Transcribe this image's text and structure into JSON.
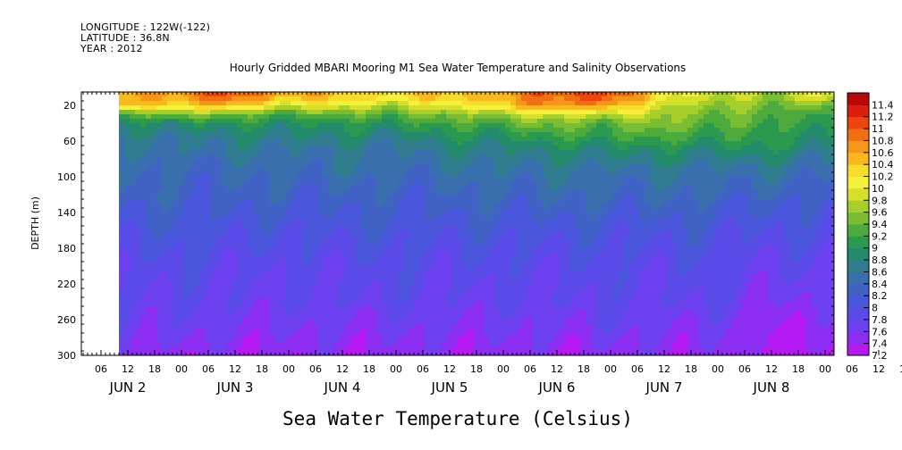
{
  "meta": {
    "longitude": "LONGITUDE : 122W(-122)",
    "latitude": "LATITUDE : 36.8N",
    "year": "YEAR : 2012"
  },
  "chart_data": {
    "type": "heatmap",
    "title": "Hourly Gridded MBARI Mooring M1 Sea Water Temperature and Salinity Observations",
    "xlabel": "Sea Water Temperature (Celsius)",
    "ylabel": "DEPTH (m)",
    "y_ticks": [
      20,
      60,
      100,
      140,
      180,
      220,
      260,
      300
    ],
    "ylim": [
      5,
      300
    ],
    "y_inverted": true,
    "x_hour_ticks": [
      "06",
      "12",
      "18",
      "00",
      "06",
      "12",
      "18",
      "00",
      "06",
      "12",
      "18",
      "00",
      "06",
      "12",
      "18",
      "00",
      "06",
      "12",
      "18",
      "00",
      "06",
      "12",
      "18",
      "00",
      "06",
      "12",
      "18",
      "00",
      "06",
      "12",
      "18",
      "00"
    ],
    "x_day_labels": [
      "JUN 2",
      "JUN 3",
      "JUN 4",
      "JUN 5",
      "JUN 6",
      "JUN 7",
      "JUN 8"
    ],
    "data_start_hour_offset": 7,
    "colorbar": {
      "levels": [
        7.2,
        7.4,
        7.6,
        7.8,
        8,
        8.2,
        8.4,
        8.6,
        8.8,
        9,
        9.2,
        9.4,
        9.6,
        9.8,
        10,
        10.2,
        10.4,
        10.6,
        10.8,
        11,
        11.2,
        11.4
      ],
      "colors": [
        "#b419f2",
        "#8c2df2",
        "#6e41f0",
        "#5a4be8",
        "#4a56dc",
        "#3f62c4",
        "#3a6fae",
        "#2f7d8e",
        "#248a6c",
        "#2b9a4e",
        "#4cab3c",
        "#78bd34",
        "#a6cf2c",
        "#d4e02c",
        "#f4f03c",
        "#f8dc2a",
        "#f8b81e",
        "#f69616",
        "#f26e12",
        "#ee4410",
        "#dc1e0e",
        "#b80808"
      ]
    },
    "series": [
      {
        "depth_m": [
          10,
          20,
          30,
          40,
          55,
          70,
          90,
          120,
          160,
          200,
          240,
          270,
          300
        ],
        "times_hours": [
          0,
          12,
          24,
          36,
          48,
          60,
          72,
          84,
          96,
          108,
          120,
          132,
          144,
          156,
          168
        ],
        "values": [
          [
            10.6,
            10.7,
            11.0,
            10.6,
            10.4,
            10.3,
            10.4,
            10.6,
            10.9,
            11.2,
            10.2,
            9.9,
            9.6,
            10.1,
            9.5
          ],
          [
            10.4,
            10.4,
            10.5,
            10.0,
            10.0,
            9.8,
            10.0,
            10.4,
            10.7,
            10.8,
            9.9,
            9.7,
            9.4,
            9.6,
            9.3
          ],
          [
            9.2,
            9.6,
            9.4,
            9.3,
            9.4,
            9.4,
            9.5,
            9.7,
            9.9,
            9.9,
            9.7,
            9.5,
            9.3,
            9.3,
            9.2
          ],
          [
            8.8,
            9.0,
            9.0,
            9.0,
            9.0,
            9.1,
            9.2,
            9.3,
            9.5,
            9.4,
            9.6,
            9.4,
            9.2,
            9.2,
            9.1
          ],
          [
            8.6,
            8.7,
            8.7,
            8.8,
            8.8,
            8.8,
            8.9,
            9.0,
            9.1,
            9.2,
            9.2,
            9.2,
            9.1,
            9.0,
            9.0
          ],
          [
            8.5,
            8.6,
            8.6,
            8.6,
            8.6,
            8.6,
            8.7,
            8.8,
            8.8,
            8.9,
            8.9,
            8.9,
            8.9,
            8.8,
            8.7
          ],
          [
            8.4,
            8.4,
            8.4,
            8.5,
            8.5,
            8.5,
            8.5,
            8.6,
            8.6,
            8.6,
            8.6,
            8.6,
            8.6,
            8.5,
            8.4
          ],
          [
            8.3,
            8.3,
            8.3,
            8.3,
            8.3,
            8.3,
            8.3,
            8.4,
            8.4,
            8.4,
            8.4,
            8.4,
            8.3,
            8.2,
            8.2
          ],
          [
            8.1,
            8.1,
            8.1,
            8.0,
            8.1,
            8.1,
            8.1,
            8.1,
            8.1,
            8.1,
            8.1,
            8.1,
            8.0,
            8.0,
            8.0
          ],
          [
            7.9,
            7.9,
            7.9,
            7.8,
            7.9,
            7.9,
            7.9,
            7.9,
            7.9,
            7.9,
            7.9,
            7.9,
            7.8,
            7.8,
            7.7
          ],
          [
            7.8,
            7.8,
            7.8,
            7.7,
            7.8,
            7.8,
            7.8,
            7.7,
            7.8,
            7.8,
            7.8,
            7.8,
            7.6,
            7.6,
            7.5
          ],
          [
            7.7,
            7.7,
            7.6,
            7.6,
            7.6,
            7.6,
            7.6,
            7.6,
            7.6,
            7.7,
            7.6,
            7.6,
            7.4,
            7.4,
            7.4
          ],
          [
            7.6,
            7.5,
            7.4,
            7.5,
            7.4,
            7.5,
            7.4,
            7.5,
            7.4,
            7.5,
            7.5,
            7.5,
            7.3,
            7.3,
            7.3
          ]
        ]
      }
    ]
  }
}
